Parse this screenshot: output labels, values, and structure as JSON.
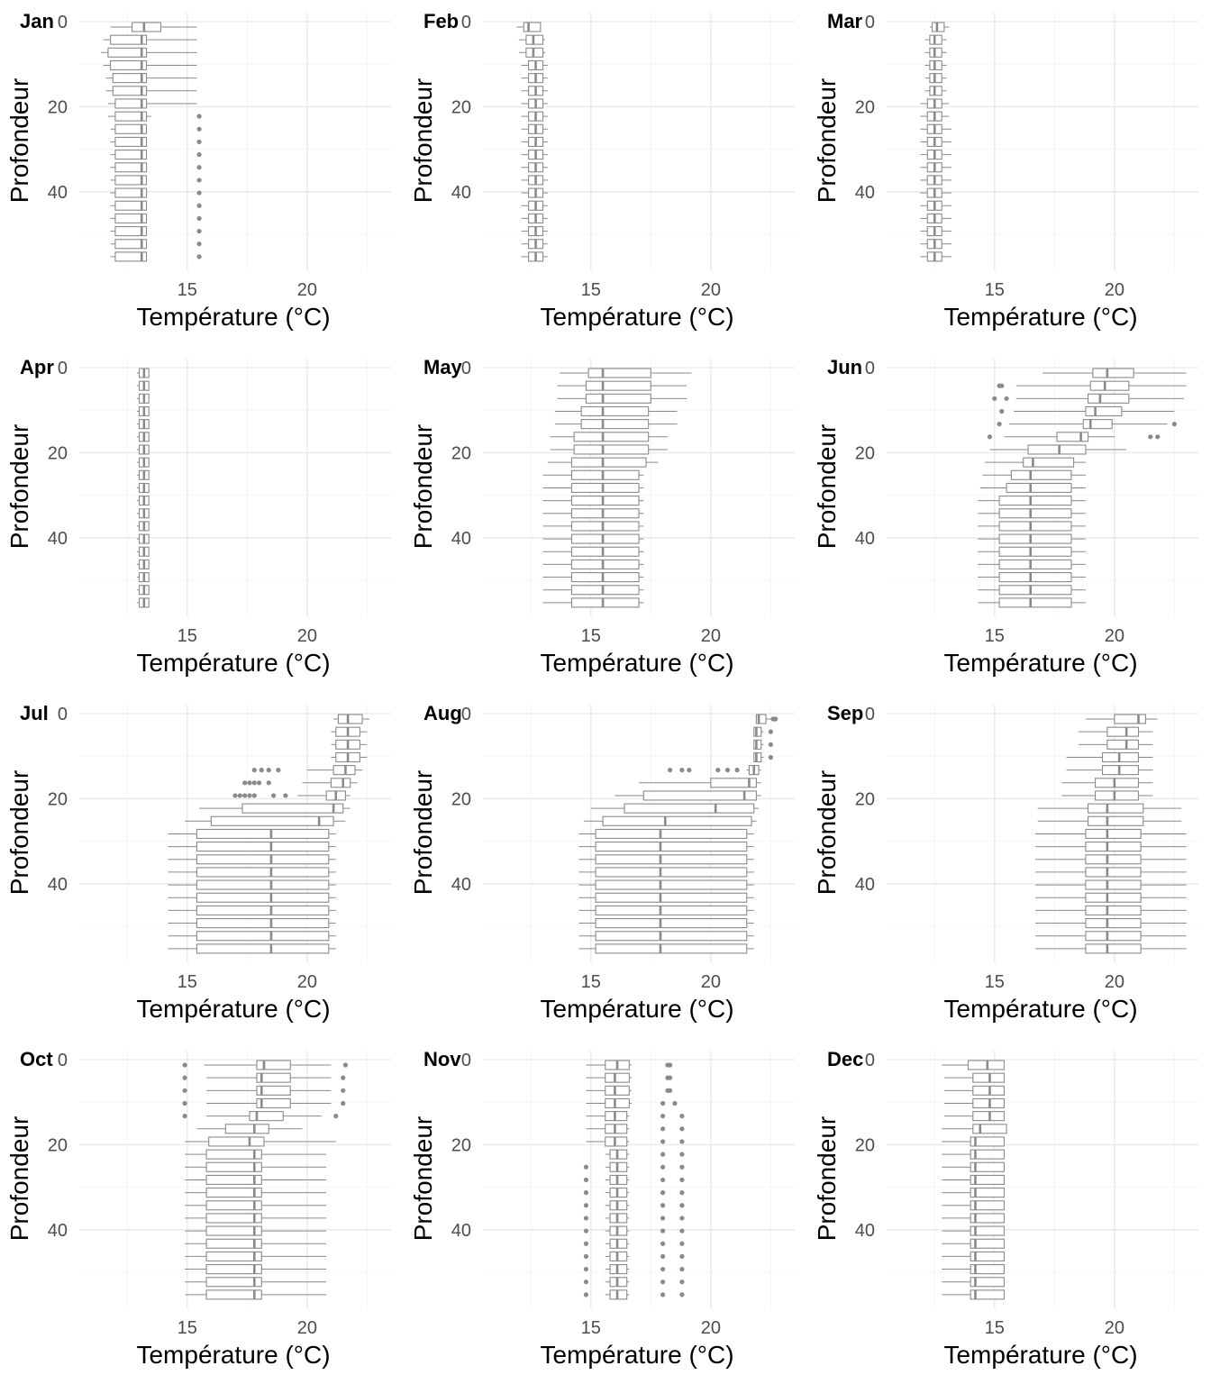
{
  "chart_data": {
    "type": "boxplot",
    "layout": "facet-grid-4x3",
    "xlabel": "Température (°C)",
    "ylabel": "Profondeur",
    "xlim": [
      10.5,
      23.5
    ],
    "ylim": [
      0,
      55
    ],
    "y_reversed": true,
    "x_ticks": [
      15,
      20
    ],
    "y_ticks": [
      0,
      20,
      40
    ],
    "depths": [
      0,
      3,
      6,
      9,
      12,
      15,
      18,
      21,
      24,
      27,
      30,
      33,
      36,
      39,
      42,
      45,
      48,
      51,
      54
    ],
    "box_color": "#8a8a8a",
    "grid": true,
    "panels": [
      {
        "label": "Jan",
        "profile": [
          {
            "to": 0,
            "q1": 12.7,
            "med": 13.2,
            "q3": 13.9,
            "lo": 11.8,
            "hi": 15.4
          },
          {
            "to": 3,
            "q1": 11.8,
            "med": 13.1,
            "q3": 13.3,
            "lo": 11.5,
            "hi": 15.4
          },
          {
            "to": 6,
            "q1": 11.7,
            "med": 13.1,
            "q3": 13.3,
            "lo": 11.4,
            "hi": 15.4
          },
          {
            "to": 9,
            "q1": 11.8,
            "med": 13.1,
            "q3": 13.3,
            "lo": 11.5,
            "hi": 15.4
          },
          {
            "to": 12,
            "q1": 11.9,
            "med": 13.1,
            "q3": 13.3,
            "lo": 11.6,
            "hi": 15.4
          },
          {
            "to": 15,
            "q1": 11.9,
            "med": 13.1,
            "q3": 13.3,
            "lo": 11.6,
            "hi": 15.4
          },
          {
            "to": 18,
            "q1": 12.0,
            "med": 13.1,
            "q3": 13.3,
            "lo": 11.7,
            "hi": 15.4
          },
          {
            "to": 21,
            "q1": 12.0,
            "med": 13.1,
            "q3": 13.3,
            "lo": 11.7,
            "hi": 13.5,
            "out": [
              15.5
            ]
          },
          {
            "to": 54,
            "q1": 12.0,
            "med": 13.1,
            "q3": 13.3,
            "lo": 11.8,
            "hi": 13.3,
            "out": [
              15.5
            ]
          }
        ]
      },
      {
        "label": "Feb",
        "profile": [
          {
            "to": 0,
            "q1": 12.2,
            "med": 12.4,
            "q3": 12.9,
            "lo": 11.9,
            "hi": 12.9
          },
          {
            "to": 6,
            "q1": 12.3,
            "med": 12.6,
            "q3": 13.0,
            "lo": 12.0,
            "hi": 13.1
          },
          {
            "to": 12,
            "q1": 12.4,
            "med": 12.7,
            "q3": 13.0,
            "lo": 12.1,
            "hi": 13.2
          },
          {
            "to": 54,
            "q1": 12.4,
            "med": 12.7,
            "q3": 13.0,
            "lo": 12.1,
            "hi": 13.2
          }
        ]
      },
      {
        "label": "Mar",
        "profile": [
          {
            "to": 0,
            "q1": 12.4,
            "med": 12.6,
            "q3": 12.9,
            "lo": 12.3,
            "hi": 13.1
          },
          {
            "to": 15,
            "q1": 12.3,
            "med": 12.5,
            "q3": 12.8,
            "lo": 12.1,
            "hi": 13.0
          },
          {
            "to": 21,
            "q1": 12.2,
            "med": 12.5,
            "q3": 12.8,
            "lo": 11.9,
            "hi": 13.1
          },
          {
            "to": 54,
            "q1": 12.2,
            "med": 12.5,
            "q3": 12.8,
            "lo": 11.9,
            "hi": 13.2
          }
        ]
      },
      {
        "label": "Apr",
        "profile": [
          {
            "to": 54,
            "q1": 13.0,
            "med": 13.2,
            "q3": 13.4,
            "lo": 12.9,
            "hi": 13.4
          }
        ]
      },
      {
        "label": "May",
        "profile": [
          {
            "to": 0,
            "q1": 14.9,
            "med": 15.5,
            "q3": 17.5,
            "lo": 13.7,
            "hi": 19.2
          },
          {
            "to": 6,
            "q1": 14.8,
            "med": 15.5,
            "q3": 17.5,
            "lo": 13.6,
            "hi": 19.0
          },
          {
            "to": 12,
            "q1": 14.6,
            "med": 15.5,
            "q3": 17.4,
            "lo": 13.5,
            "hi": 18.6
          },
          {
            "to": 18,
            "q1": 14.3,
            "med": 15.5,
            "q3": 17.4,
            "lo": 13.3,
            "hi": 18.2
          },
          {
            "to": 21,
            "q1": 14.2,
            "med": 15.5,
            "q3": 17.3,
            "lo": 13.2,
            "hi": 17.8
          },
          {
            "to": 54,
            "q1": 14.2,
            "med": 15.5,
            "q3": 17.0,
            "lo": 13.0,
            "hi": 17.2
          }
        ]
      },
      {
        "label": "Jun",
        "profile": [
          {
            "to": 0,
            "q1": 19.1,
            "med": 19.7,
            "q3": 20.8,
            "lo": 17.0,
            "hi": 23.0
          },
          {
            "to": 3,
            "q1": 19.0,
            "med": 19.6,
            "q3": 20.6,
            "lo": 15.9,
            "hi": 23.0,
            "out": [
              15.3,
              15.2
            ]
          },
          {
            "to": 6,
            "q1": 18.9,
            "med": 19.4,
            "q3": 20.6,
            "lo": 15.9,
            "hi": 22.9,
            "out": [
              15.5,
              15.0
            ]
          },
          {
            "to": 9,
            "q1": 18.8,
            "med": 19.2,
            "q3": 20.3,
            "lo": 15.8,
            "hi": 22.5,
            "out": [
              15.3
            ]
          },
          {
            "to": 12,
            "q1": 18.7,
            "med": 19.0,
            "q3": 19.9,
            "lo": 15.6,
            "hi": 22.2,
            "out": [
              15.2,
              22.5
            ]
          },
          {
            "to": 15,
            "q1": 17.6,
            "med": 18.6,
            "q3": 18.9,
            "lo": 15.4,
            "hi": 20.0,
            "out": [
              14.8,
              21.5,
              21.8
            ]
          },
          {
            "to": 18,
            "q1": 16.4,
            "med": 17.7,
            "q3": 18.8,
            "lo": 14.8,
            "hi": 20.5
          },
          {
            "to": 21,
            "q1": 16.2,
            "med": 16.6,
            "q3": 18.3,
            "lo": 14.6,
            "hi": 18.8
          },
          {
            "to": 24,
            "q1": 15.7,
            "med": 16.5,
            "q3": 18.2,
            "lo": 14.5,
            "hi": 18.8
          },
          {
            "to": 27,
            "q1": 15.5,
            "med": 16.5,
            "q3": 18.2,
            "lo": 14.4,
            "hi": 18.8
          },
          {
            "to": 54,
            "q1": 15.2,
            "med": 16.5,
            "q3": 18.2,
            "lo": 14.3,
            "hi": 18.8
          }
        ]
      },
      {
        "label": "Jul",
        "profile": [
          {
            "to": 0,
            "q1": 21.3,
            "med": 21.7,
            "q3": 22.3,
            "lo": 21.1,
            "hi": 22.6
          },
          {
            "to": 9,
            "q1": 21.2,
            "med": 21.7,
            "q3": 22.2,
            "lo": 21.0,
            "hi": 22.5
          },
          {
            "to": 12,
            "q1": 21.1,
            "med": 21.6,
            "q3": 22.0,
            "lo": 20.0,
            "hi": 22.3,
            "out": [
              17.8,
              18.1,
              18.4,
              18.8
            ]
          },
          {
            "to": 15,
            "q1": 21.0,
            "med": 21.5,
            "q3": 21.8,
            "lo": 19.8,
            "hi": 22.1,
            "out": [
              17.4,
              17.6,
              17.8,
              18.0,
              18.4
            ]
          },
          {
            "to": 18,
            "q1": 20.8,
            "med": 21.2,
            "q3": 21.6,
            "lo": 19.6,
            "hi": 21.8,
            "out": [
              17.0,
              17.2,
              17.4,
              17.6,
              17.8,
              18.6,
              19.1
            ]
          },
          {
            "to": 21,
            "q1": 17.3,
            "med": 21.1,
            "q3": 21.5,
            "lo": 15.5,
            "hi": 21.8
          },
          {
            "to": 24,
            "q1": 16.0,
            "med": 20.5,
            "q3": 21.1,
            "lo": 14.9,
            "hi": 21.6
          },
          {
            "to": 54,
            "q1": 15.4,
            "med": 18.5,
            "q3": 20.9,
            "lo": 14.2,
            "hi": 21.2
          }
        ]
      },
      {
        "label": "Aug",
        "profile": [
          {
            "to": 0,
            "q1": 21.9,
            "med": 22.0,
            "q3": 22.3,
            "lo": 21.9,
            "hi": 22.5,
            "out": [
              22.6,
              22.7
            ]
          },
          {
            "to": 9,
            "q1": 21.8,
            "med": 21.9,
            "q3": 22.1,
            "lo": 21.8,
            "hi": 22.2,
            "out": [
              22.5
            ]
          },
          {
            "to": 12,
            "q1": 21.6,
            "med": 21.8,
            "q3": 22.0,
            "lo": 21.5,
            "hi": 22.1,
            "out": [
              18.3,
              18.8,
              19.1,
              20.3,
              20.7,
              21.1
            ]
          },
          {
            "to": 15,
            "q1": 20.0,
            "med": 21.6,
            "q3": 21.9,
            "lo": 17.0,
            "hi": 22.1
          },
          {
            "to": 18,
            "q1": 17.2,
            "med": 21.4,
            "q3": 21.9,
            "lo": 16.0,
            "hi": 22.1
          },
          {
            "to": 21,
            "q1": 16.4,
            "med": 20.2,
            "q3": 21.8,
            "lo": 15.0,
            "hi": 22.0
          },
          {
            "to": 24,
            "q1": 15.5,
            "med": 18.1,
            "q3": 21.7,
            "lo": 14.7,
            "hi": 21.9
          },
          {
            "to": 54,
            "q1": 15.2,
            "med": 17.9,
            "q3": 21.5,
            "lo": 14.5,
            "hi": 21.8
          }
        ]
      },
      {
        "label": "Sep",
        "profile": [
          {
            "to": 0,
            "q1": 20.0,
            "med": 21.0,
            "q3": 21.3,
            "lo": 18.8,
            "hi": 21.8
          },
          {
            "to": 6,
            "q1": 19.7,
            "med": 20.5,
            "q3": 21.0,
            "lo": 18.5,
            "hi": 21.6
          },
          {
            "to": 12,
            "q1": 19.5,
            "med": 20.2,
            "q3": 21.0,
            "lo": 18.0,
            "hi": 21.6
          },
          {
            "to": 18,
            "q1": 19.2,
            "med": 20.0,
            "q3": 21.0,
            "lo": 17.8,
            "hi": 21.6
          },
          {
            "to": 24,
            "q1": 18.9,
            "med": 19.7,
            "q3": 21.2,
            "lo": 16.8,
            "hi": 22.8
          },
          {
            "to": 54,
            "q1": 18.8,
            "med": 19.7,
            "q3": 21.1,
            "lo": 16.7,
            "hi": 23.0
          }
        ]
      },
      {
        "label": "Oct",
        "profile": [
          {
            "to": 0,
            "q1": 17.9,
            "med": 18.2,
            "q3": 19.3,
            "lo": 15.7,
            "hi": 21.0,
            "out": [
              14.9,
              21.6
            ]
          },
          {
            "to": 6,
            "q1": 17.9,
            "med": 18.1,
            "q3": 19.3,
            "lo": 15.8,
            "hi": 21.0,
            "out": [
              14.9,
              21.5
            ]
          },
          {
            "to": 9,
            "q1": 17.9,
            "med": 18.1,
            "q3": 19.3,
            "lo": 15.8,
            "hi": 21.0,
            "out": [
              14.9,
              21.5
            ]
          },
          {
            "to": 12,
            "q1": 17.6,
            "med": 17.9,
            "q3": 19.0,
            "lo": 15.8,
            "hi": 20.6,
            "out": [
              14.9,
              21.2
            ]
          },
          {
            "to": 15,
            "q1": 16.6,
            "med": 17.8,
            "q3": 18.4,
            "lo": 15.4,
            "hi": 19.8
          },
          {
            "to": 18,
            "q1": 15.9,
            "med": 17.6,
            "q3": 18.2,
            "lo": 14.9,
            "hi": 21.2
          },
          {
            "to": 54,
            "q1": 15.8,
            "med": 17.8,
            "q3": 18.1,
            "lo": 14.9,
            "hi": 20.8
          }
        ]
      },
      {
        "label": "Nov",
        "profile": [
          {
            "to": 0,
            "q1": 15.6,
            "med": 16.1,
            "q3": 16.6,
            "lo": 14.8,
            "hi": 16.7,
            "out": [
              18.2,
              18.3
            ]
          },
          {
            "to": 6,
            "q1": 15.6,
            "med": 16.0,
            "q3": 16.6,
            "lo": 14.8,
            "hi": 16.7,
            "out": [
              18.2,
              18.3
            ]
          },
          {
            "to": 9,
            "q1": 15.6,
            "med": 16.0,
            "q3": 16.6,
            "lo": 14.8,
            "hi": 16.7,
            "out": [
              18.0,
              18.5
            ]
          },
          {
            "to": 18,
            "q1": 15.6,
            "med": 16.0,
            "q3": 16.5,
            "lo": 14.8,
            "hi": 16.6,
            "out": [
              18.0,
              18.8
            ]
          },
          {
            "to": 21,
            "q1": 15.8,
            "med": 16.1,
            "q3": 16.5,
            "lo": 15.6,
            "hi": 16.6,
            "out": [
              18.0,
              18.8
            ]
          },
          {
            "to": 54,
            "q1": 15.8,
            "med": 16.1,
            "q3": 16.5,
            "lo": 15.6,
            "hi": 16.6,
            "out": [
              14.8,
              18.0,
              18.8
            ]
          }
        ]
      },
      {
        "label": "Dec",
        "profile": [
          {
            "to": 0,
            "q1": 13.9,
            "med": 14.7,
            "q3": 15.4,
            "lo": 12.8,
            "hi": 15.4
          },
          {
            "to": 12,
            "q1": 14.1,
            "med": 14.8,
            "q3": 15.4,
            "lo": 12.9,
            "hi": 15.4
          },
          {
            "to": 15,
            "q1": 14.1,
            "med": 14.4,
            "q3": 15.5,
            "lo": 12.8,
            "hi": 15.5
          },
          {
            "to": 54,
            "q1": 14.0,
            "med": 14.2,
            "q3": 15.4,
            "lo": 12.8,
            "hi": 15.4
          }
        ]
      }
    ]
  }
}
